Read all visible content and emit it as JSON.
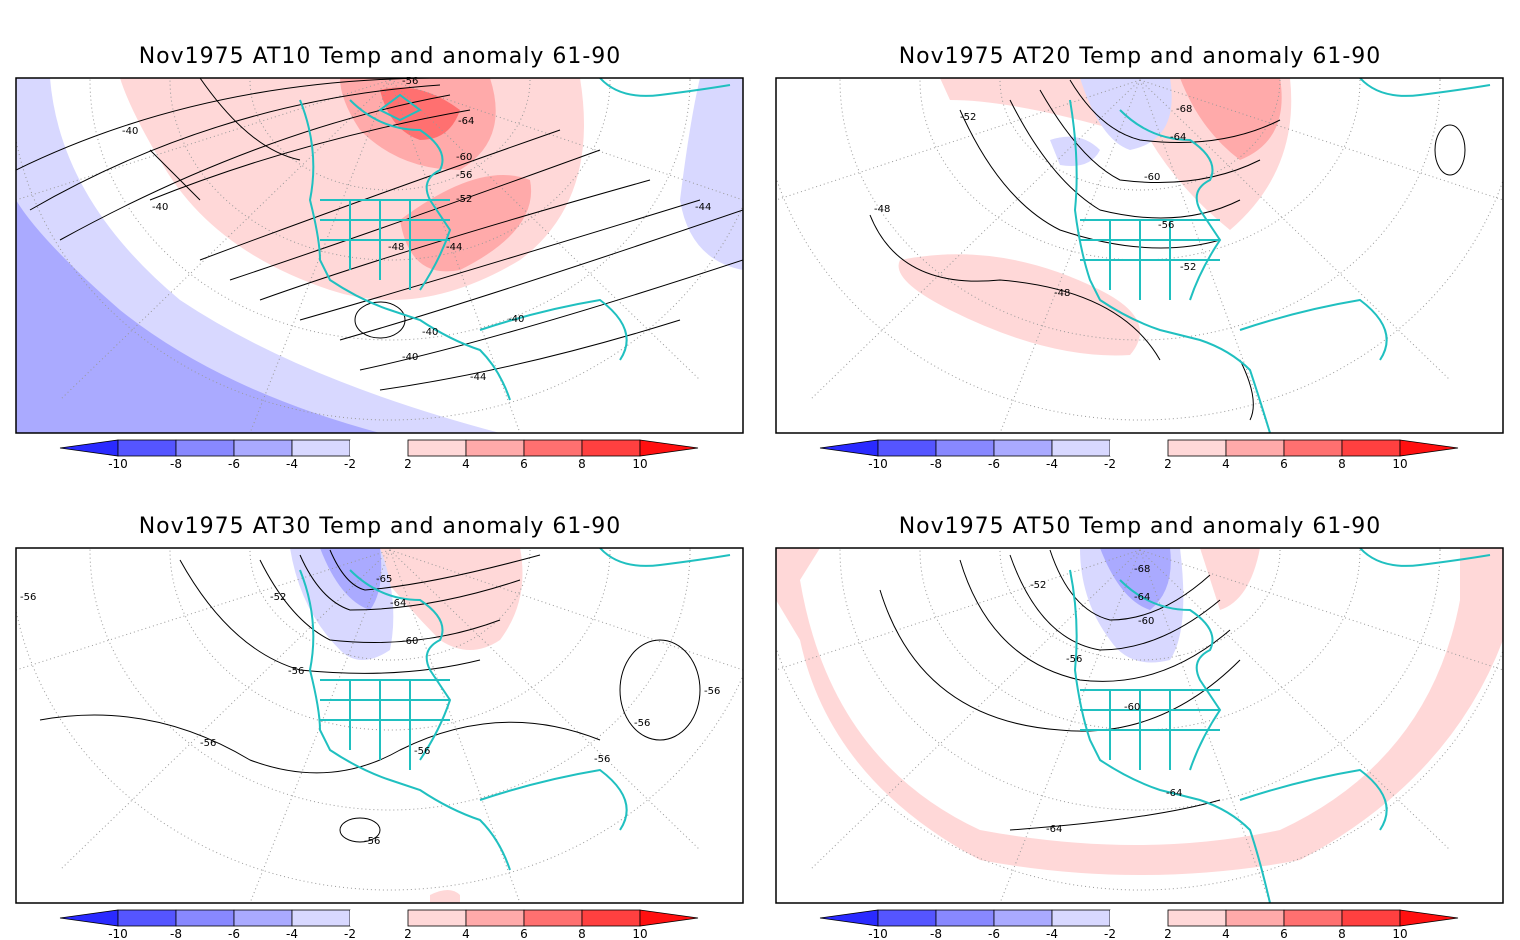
{
  "panels": [
    {
      "title": "Nov1975 AT10 Temp and anomaly 61-90",
      "contour_labels": [
        "-40",
        "-40",
        "-48",
        "-44",
        "-52",
        "-56",
        "-60",
        "-64",
        "-56",
        "-40",
        "-40",
        "-40",
        "-44",
        "-44"
      ],
      "colorbar_labels": [
        "-10",
        "-8",
        "-6",
        "-4",
        "-2",
        "2",
        "4",
        "6",
        "8",
        "10"
      ]
    },
    {
      "title": "Nov1975 AT20 Temp and anomaly 61-90",
      "contour_labels": [
        "-52",
        "-48",
        "-68",
        "-64",
        "-60",
        "-56",
        "-52",
        "-48"
      ],
      "colorbar_labels": [
        "-10",
        "-8",
        "-6",
        "-4",
        "-2",
        "2",
        "4",
        "6",
        "8",
        "10"
      ]
    },
    {
      "title": "Nov1975 AT30 Temp and anomaly 61-90",
      "contour_labels": [
        "-52",
        "-56",
        "-65",
        "-64",
        "-60",
        "-56",
        "-56",
        "-56",
        "-56",
        "-56",
        "-56",
        "-56"
      ],
      "colorbar_labels": [
        "-10",
        "-8",
        "-6",
        "-4",
        "-2",
        "2",
        "4",
        "6",
        "8",
        "10"
      ]
    },
    {
      "title": "Nov1975 AT50 Temp and anomaly 61-90",
      "contour_labels": [
        "-52",
        "-68",
        "-64",
        "-60",
        "-56",
        "-60",
        "-64",
        "-64"
      ],
      "colorbar_labels": [
        "-10",
        "-8",
        "-6",
        "-4",
        "-2",
        "2",
        "4",
        "6",
        "8",
        "10"
      ]
    }
  ],
  "colors": {
    "blue_scale": [
      "#2a2aff",
      "#5555ff",
      "#8888ff",
      "#aaaaff",
      "#d8d8ff"
    ],
    "red_scale": [
      "#ffd8d8",
      "#ffaaaa",
      "#ff7070",
      "#ff4040",
      "#ff1010"
    ],
    "coast": "#20c0c0"
  }
}
